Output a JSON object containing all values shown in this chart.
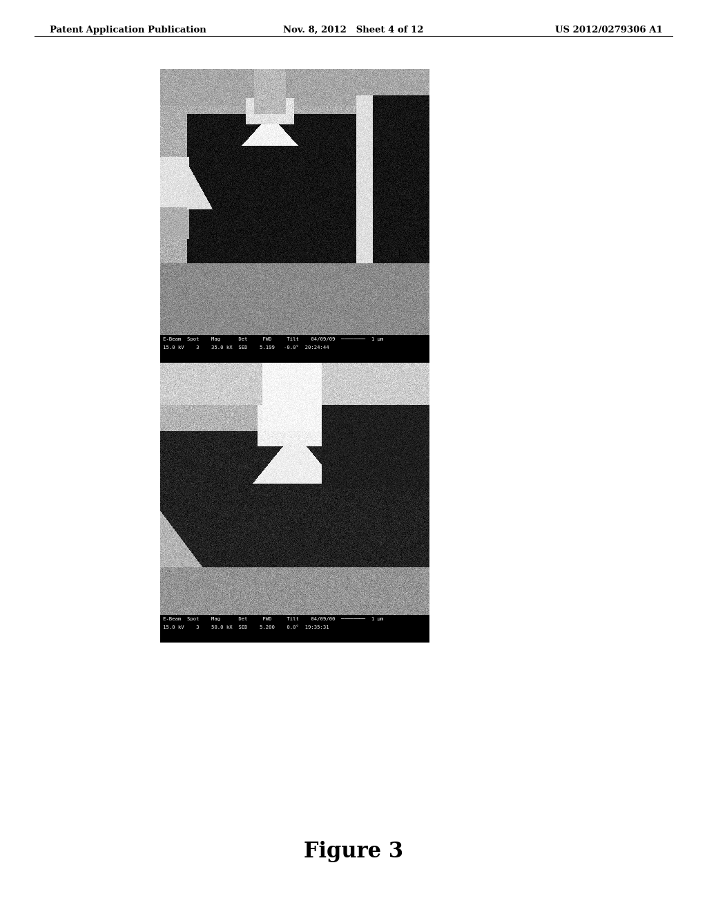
{
  "background_color": "#ffffff",
  "header_left": "Patent Application Publication",
  "header_center": "Nov. 8, 2012   Sheet 4 of 12",
  "header_right": "US 2012/0279306 A1",
  "figure_label": "Figure 3",
  "sem_bar1_line1": "E-Beam  Spot    Mag      Det     FWD     Tilt    04/09/09  ────────  1 μm",
  "sem_bar1_line2": "15.0 kV    3    35.0 kX  SED    5.199   -0.0°  20:24:44",
  "sem_bar2_line1": "E-Beam  Spot    Mag      Det     FWD     Tilt    04/09/00  ────────  1 μm",
  "sem_bar2_line2": "15.0 kV    3    50.0 kX  SED    5.200    0.0°  19:35:31"
}
